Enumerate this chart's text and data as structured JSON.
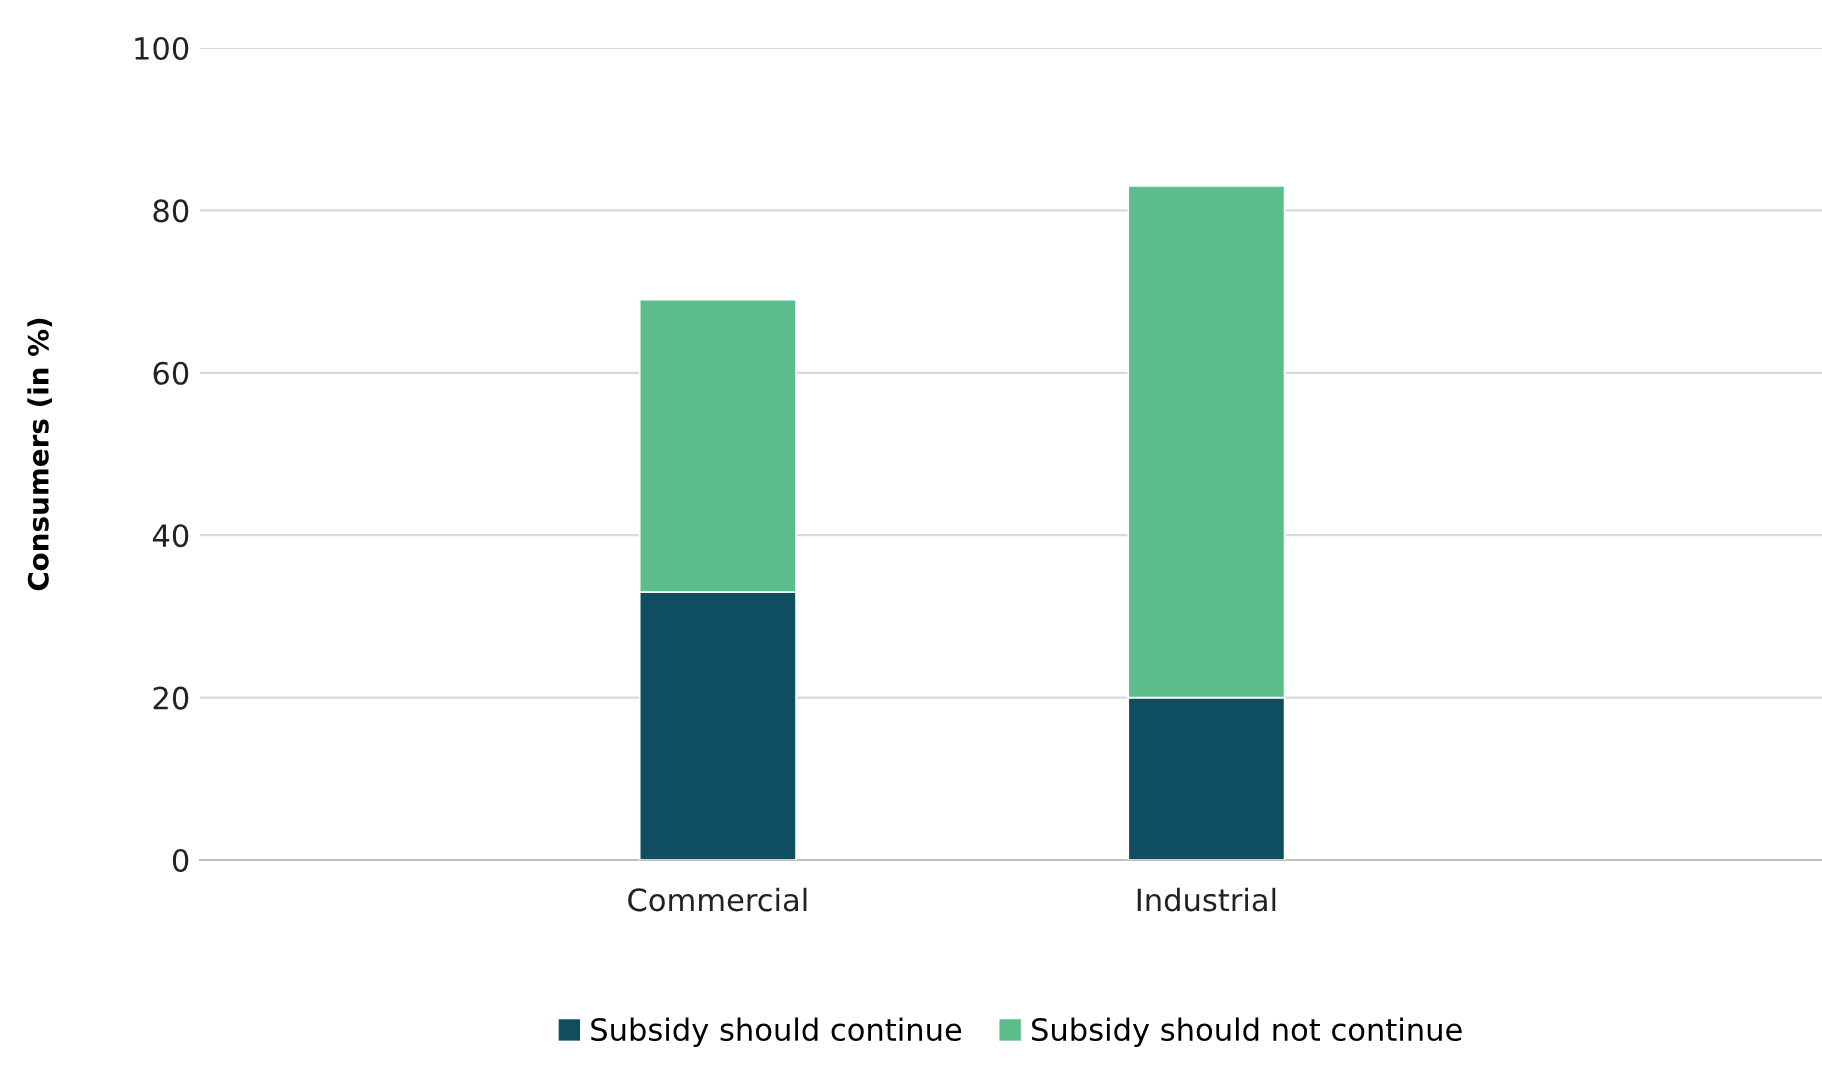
{
  "chart_data": {
    "type": "bar",
    "stacked": true,
    "ylabel": "Consumers (in %)",
    "categories": [
      "Commercial",
      "Industrial"
    ],
    "series": [
      {
        "name": "Subsidy should continue",
        "color": "#0e4e60",
        "values": [
          33,
          20
        ]
      },
      {
        "name": "Subsidy should not continue",
        "color": "#5cbd8a",
        "values": [
          36,
          63
        ]
      }
    ],
    "ylim": [
      0,
      100
    ],
    "yticks": [
      0,
      20,
      40,
      60,
      80,
      100
    ],
    "grid": "y",
    "legend": "bottom"
  }
}
